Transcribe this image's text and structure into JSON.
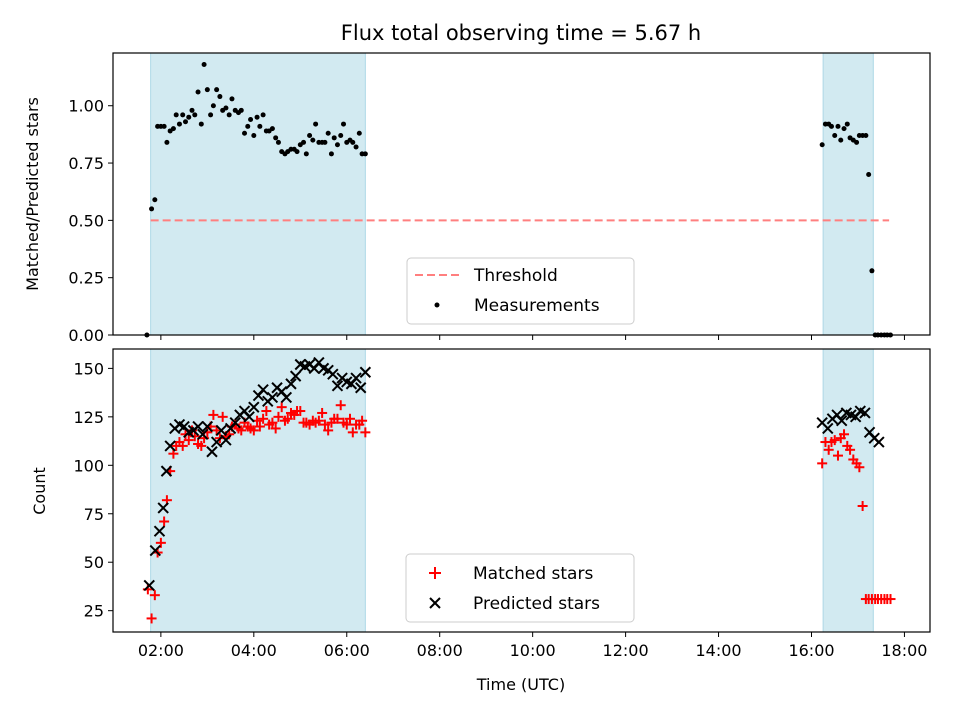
{
  "chart_data": {
    "type": "scatter",
    "title": "Flux total observing time = 5.67 h",
    "shaded_periods": [
      [
        1.78,
        6.4
      ],
      [
        16.25,
        17.33
      ]
    ],
    "colors": {
      "shade": "#add8e6",
      "threshold": "#ff7f7f",
      "matched": "#ff0000",
      "predicted": "#000000",
      "measurements": "#000000"
    },
    "xlabel": "Time (UTC)",
    "xlim": [
      0.97,
      18.55
    ],
    "xticks": [
      2,
      4,
      6,
      8,
      10,
      12,
      14,
      16,
      18
    ],
    "xtick_labels": [
      "02:00",
      "04:00",
      "06:00",
      "08:00",
      "10:00",
      "12:00",
      "14:00",
      "16:00",
      "18:00"
    ],
    "panels": [
      {
        "ylabel": "Matched/Predicted stars",
        "ylim": [
          0,
          1.23
        ],
        "yticks": [
          0,
          0.25,
          0.5,
          0.75,
          1.0
        ],
        "ytick_labels": [
          "0.00",
          "0.25",
          "0.50",
          "0.75",
          "1.00"
        ],
        "legend_position": "lower center",
        "series": [
          {
            "name": "Threshold",
            "kind": "dashed-line",
            "x": [
              1.78,
              17.67
            ],
            "y": [
              0.5,
              0.5
            ]
          },
          {
            "name": "Measurements",
            "kind": "dot",
            "x": [
              1.7,
              1.8,
              1.87,
              1.93,
              2.0,
              2.07,
              2.13,
              2.2,
              2.27,
              2.33,
              2.4,
              2.47,
              2.53,
              2.6,
              2.67,
              2.73,
              2.8,
              2.87,
              2.93,
              3.0,
              3.07,
              3.13,
              3.2,
              3.27,
              3.33,
              3.4,
              3.47,
              3.53,
              3.6,
              3.67,
              3.73,
              3.8,
              3.87,
              3.93,
              4.0,
              4.07,
              4.13,
              4.2,
              4.27,
              4.33,
              4.4,
              4.47,
              4.53,
              4.6,
              4.67,
              4.73,
              4.8,
              4.87,
              4.93,
              5.0,
              5.07,
              5.13,
              5.2,
              5.27,
              5.33,
              5.4,
              5.47,
              5.53,
              5.6,
              5.67,
              5.73,
              5.8,
              5.87,
              5.93,
              6.0,
              6.07,
              6.13,
              6.2,
              6.27,
              6.33,
              6.4,
              16.23,
              16.3,
              16.37,
              16.43,
              16.5,
              16.57,
              16.63,
              16.7,
              16.77,
              16.83,
              16.9,
              16.97,
              17.03,
              17.1,
              17.17,
              17.23,
              17.3,
              17.37,
              17.43,
              17.5,
              17.57,
              17.63,
              17.7
            ],
            "y": [
              0.0,
              0.55,
              0.59,
              0.91,
              0.91,
              0.91,
              0.84,
              0.89,
              0.9,
              0.96,
              0.92,
              0.96,
              0.93,
              0.95,
              0.98,
              0.96,
              1.06,
              0.92,
              1.18,
              1.07,
              0.96,
              1.0,
              1.07,
              1.04,
              0.98,
              0.99,
              0.96,
              1.03,
              0.98,
              0.97,
              0.98,
              0.88,
              0.91,
              0.94,
              0.87,
              0.95,
              0.91,
              0.96,
              0.89,
              0.89,
              0.9,
              0.86,
              0.84,
              0.8,
              0.79,
              0.8,
              0.81,
              0.81,
              0.8,
              0.83,
              0.84,
              0.79,
              0.87,
              0.85,
              0.92,
              0.84,
              0.84,
              0.84,
              0.88,
              0.79,
              0.86,
              0.83,
              0.87,
              0.92,
              0.84,
              0.85,
              0.84,
              0.82,
              0.88,
              0.79,
              0.79,
              0.83,
              0.92,
              0.92,
              0.91,
              0.87,
              0.91,
              0.85,
              0.9,
              0.92,
              0.86,
              0.85,
              0.84,
              0.87,
              0.87,
              0.87,
              0.7,
              0.28,
              0.0,
              0.0,
              0.0,
              0.0,
              0.0,
              0.0
            ]
          }
        ]
      },
      {
        "ylabel": "Count",
        "ylim": [
          14,
          160
        ],
        "yticks": [
          25,
          50,
          75,
          100,
          125,
          150
        ],
        "ytick_labels": [
          "25",
          "50",
          "75",
          "100",
          "125",
          "150"
        ],
        "legend_position": "lower center",
        "series": [
          {
            "name": "Matched stars",
            "kind": "plus",
            "x": [
              1.72,
              1.8,
              1.87,
              1.93,
              2.0,
              2.07,
              2.13,
              2.2,
              2.27,
              2.33,
              2.4,
              2.47,
              2.53,
              2.6,
              2.67,
              2.73,
              2.8,
              2.87,
              2.93,
              3.0,
              3.07,
              3.13,
              3.2,
              3.27,
              3.33,
              3.4,
              3.47,
              3.53,
              3.6,
              3.67,
              3.73,
              3.8,
              3.87,
              3.93,
              4.0,
              4.07,
              4.13,
              4.2,
              4.27,
              4.33,
              4.4,
              4.47,
              4.53,
              4.6,
              4.67,
              4.73,
              4.8,
              4.87,
              4.93,
              5.0,
              5.07,
              5.13,
              5.2,
              5.27,
              5.33,
              5.4,
              5.47,
              5.53,
              5.6,
              5.67,
              5.73,
              5.8,
              5.87,
              5.93,
              6.0,
              6.07,
              6.13,
              6.2,
              6.27,
              6.33,
              6.4,
              16.23,
              16.3,
              16.37,
              16.43,
              16.5,
              16.57,
              16.63,
              16.7,
              16.77,
              16.83,
              16.9,
              16.97,
              17.03,
              17.1,
              17.17,
              17.23,
              17.3,
              17.37,
              17.43,
              17.5,
              17.57,
              17.63,
              17.7
            ],
            "y": [
              36,
              21,
              33,
              55,
              60,
              71,
              82,
              97,
              106,
              110,
              112,
              110,
              116,
              113,
              118,
              115,
              111,
              110,
              114,
              117,
              120,
              126,
              118,
              114,
              125,
              115,
              116,
              120,
              121,
              119,
              118,
              122,
              120,
              119,
              118,
              123,
              120,
              124,
              128,
              121,
              122,
              119,
              125,
              130,
              123,
              124,
              127,
              126,
              128,
              128,
              122,
              122,
              121,
              123,
              122,
              123,
              127,
              121,
              118,
              122,
              124,
              124,
              131,
              122,
              121,
              124,
              117,
              121,
              121,
              123,
              117,
              101,
              112,
              108,
              112,
              113,
              105,
              114,
              116,
              110,
              108,
              103,
              101,
              99,
              79,
              31,
              31,
              31,
              31,
              31,
              31,
              31,
              31,
              31
            ]
          },
          {
            "name": "Predicted stars",
            "kind": "x",
            "x": [
              1.75,
              1.88,
              1.97,
              2.05,
              2.12,
              2.2,
              2.3,
              2.4,
              2.5,
              2.6,
              2.7,
              2.8,
              2.9,
              3.0,
              3.1,
              3.2,
              3.3,
              3.4,
              3.5,
              3.6,
              3.7,
              3.8,
              3.9,
              4.0,
              4.1,
              4.2,
              4.3,
              4.4,
              4.5,
              4.6,
              4.7,
              4.8,
              4.9,
              5.0,
              5.1,
              5.2,
              5.3,
              5.4,
              5.5,
              5.6,
              5.7,
              5.8,
              5.9,
              6.0,
              6.1,
              6.2,
              6.3,
              6.4,
              16.23,
              16.35,
              16.45,
              16.55,
              16.65,
              16.75,
              16.85,
              16.95,
              17.05,
              17.15,
              17.25,
              17.35,
              17.45
            ],
            "y": [
              38,
              56,
              66,
              78,
              97,
              110,
              119,
              121,
              120,
              117,
              118,
              120,
              116,
              120,
              107,
              112,
              118,
              113,
              119,
              122,
              126,
              128,
              125,
              130,
              136,
              139,
              133,
              135,
              140,
              138,
              135,
              142,
              146,
              152,
              151,
              152,
              150,
              153,
              150,
              149,
              147,
              141,
              145,
              143,
              142,
              145,
              140,
              148,
              122,
              119,
              124,
              126,
              123,
              127,
              126,
              125,
              128,
              127,
              117,
              114,
              112
            ]
          }
        ]
      }
    ]
  }
}
